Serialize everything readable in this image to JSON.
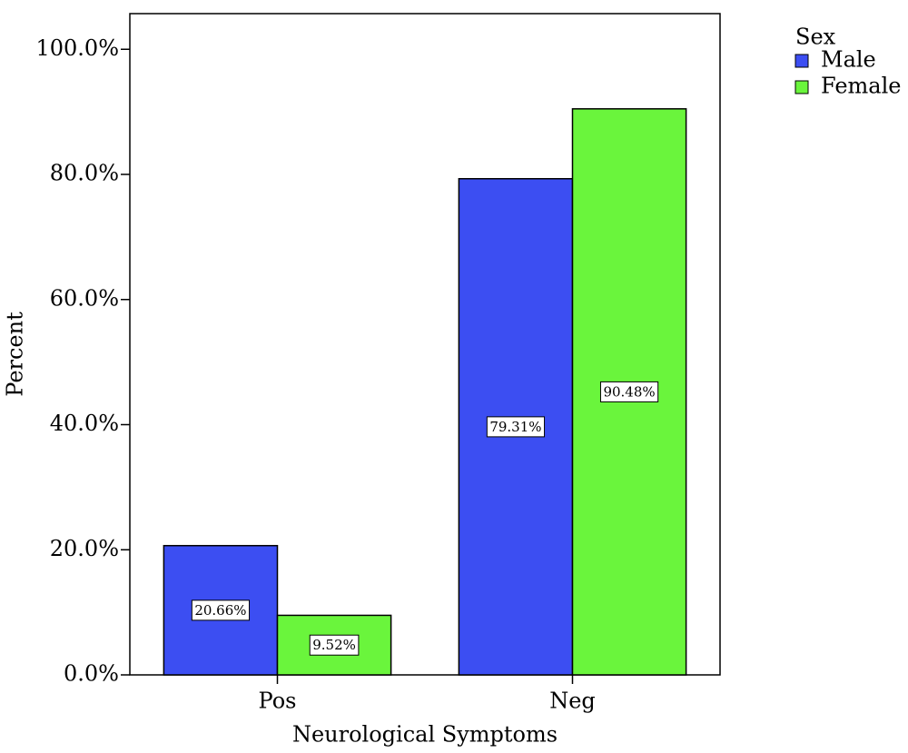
{
  "chart_data": {
    "type": "bar",
    "x_label": "Neurological Symptoms",
    "y_label": "Percent",
    "categories": [
      "Pos",
      "Neg"
    ],
    "legend_title": "Sex",
    "legend_position": "right",
    "series": [
      {
        "name": "Male",
        "color": "#3c4ef2",
        "values": [
          20.66,
          79.31
        ],
        "value_labels": [
          "20.66%",
          "79.31%"
        ]
      },
      {
        "name": "Female",
        "color": "#6af53c",
        "values": [
          9.52,
          90.48
        ],
        "value_labels": [
          "9.52%",
          "90.48%"
        ]
      }
    ],
    "ylim": [
      0,
      105.7
    ],
    "yticks": [
      {
        "value": 0,
        "label": "0.0%"
      },
      {
        "value": 20,
        "label": "20.0%"
      },
      {
        "value": 40,
        "label": "40.0%"
      },
      {
        "value": 60,
        "label": "60.0%"
      },
      {
        "value": 80,
        "label": "80.0%"
      },
      {
        "value": 100,
        "label": "100.0%"
      }
    ],
    "grid": false
  }
}
